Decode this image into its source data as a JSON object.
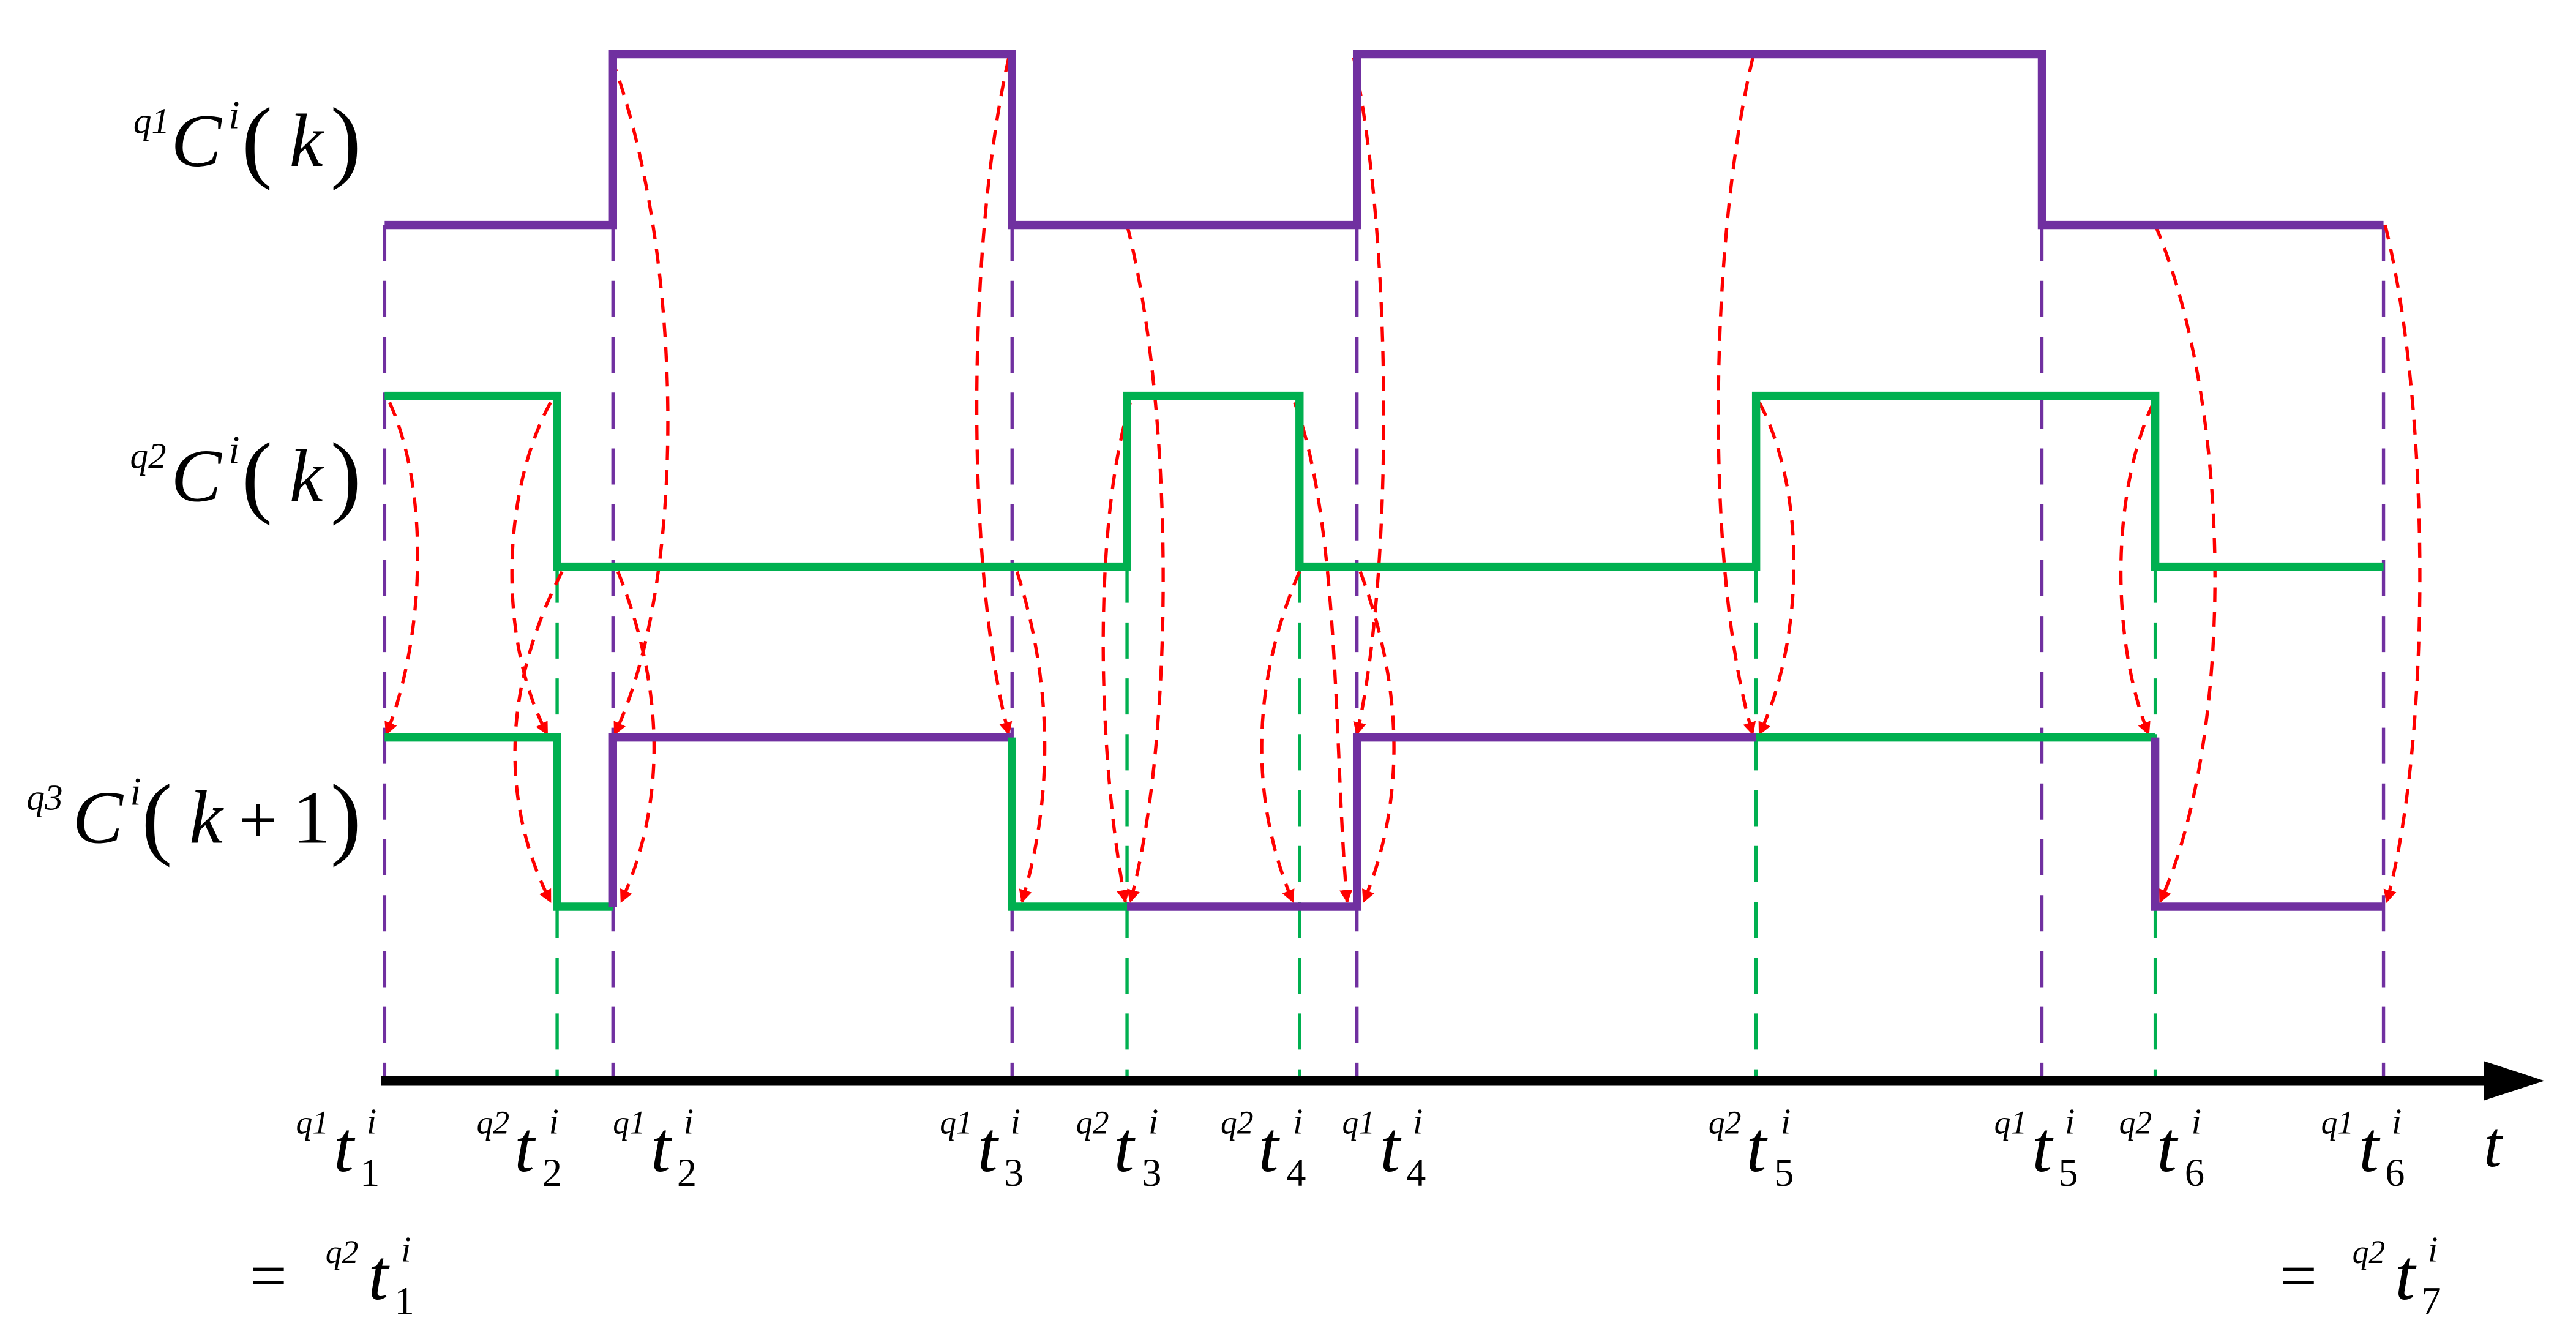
{
  "rows": {
    "q1": {
      "pre": "q1",
      "C": "C",
      "sup": "i",
      "arg": "k"
    },
    "q2": {
      "pre": "q2",
      "C": "C",
      "sup": "i",
      "arg": "k"
    },
    "q3": {
      "pre": "q3",
      "C": "C",
      "sup": "i",
      "arg": "k",
      "plus": "+",
      "one": "1"
    }
  },
  "axis_label": "t",
  "colors": {
    "purple": "#7030a0",
    "green": "#00b050",
    "red": "#ff0000",
    "black": "#000000"
  },
  "ticks": [
    {
      "pre": "q1",
      "sub": "1"
    },
    {
      "pre": "q2",
      "sub": "2"
    },
    {
      "pre": "q1",
      "sub": "2"
    },
    {
      "pre": "q1",
      "sub": "3"
    },
    {
      "pre": "q2",
      "sub": "3"
    },
    {
      "pre": "q2",
      "sub": "4"
    },
    {
      "pre": "q1",
      "sub": "4"
    },
    {
      "pre": "q2",
      "sub": "5"
    },
    {
      "pre": "q1",
      "sub": "5"
    },
    {
      "pre": "q2",
      "sub": "6"
    },
    {
      "pre": "q1",
      "sub": "6"
    }
  ],
  "equalities": [
    {
      "eq": "=",
      "pre": "q2",
      "sub": "1"
    },
    {
      "eq": "=",
      "pre": "q2",
      "sub": "7"
    }
  ]
}
